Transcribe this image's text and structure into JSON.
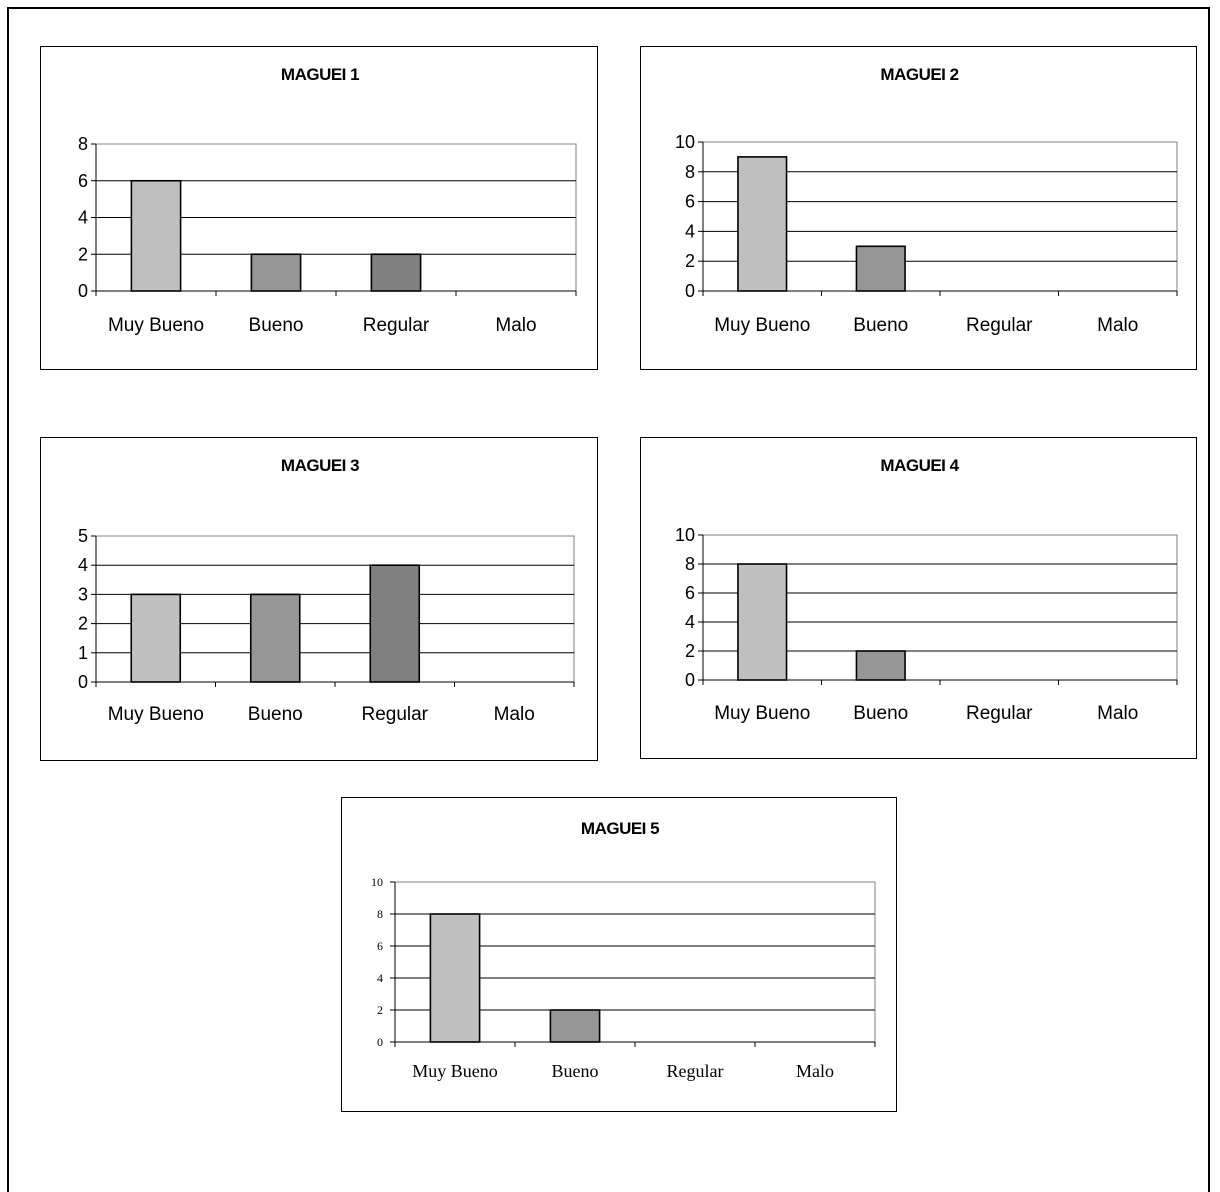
{
  "chart_data": [
    {
      "type": "bar",
      "title": "MAGUEI 1",
      "categories": [
        "Muy Bueno",
        "Bueno",
        "Regular",
        "Malo"
      ],
      "values": [
        6,
        2,
        2,
        0
      ],
      "ylim": [
        0,
        8
      ],
      "yticks": [
        0,
        2,
        4,
        6,
        8
      ],
      "grid": true,
      "legend": "none",
      "colors": [
        "#c0c0c0",
        "#969696",
        "#808080",
        "#c0c0c0"
      ]
    },
    {
      "type": "bar",
      "title": "MAGUEI 2",
      "categories": [
        "Muy Bueno",
        "Bueno",
        "Regular",
        "Malo"
      ],
      "values": [
        9,
        3,
        0,
        0
      ],
      "ylim": [
        0,
        10
      ],
      "yticks": [
        0,
        2,
        4,
        6,
        8,
        10
      ],
      "grid": true,
      "legend": "none",
      "colors": [
        "#c0c0c0",
        "#969696",
        "#808080",
        "#c0c0c0"
      ]
    },
    {
      "type": "bar",
      "title": "MAGUEI 3",
      "categories": [
        "Muy Bueno",
        "Bueno",
        "Regular",
        "Malo"
      ],
      "values": [
        3,
        3,
        4,
        0
      ],
      "ylim": [
        0,
        5
      ],
      "yticks": [
        0,
        1,
        2,
        3,
        4,
        5
      ],
      "grid": true,
      "legend": "none",
      "colors": [
        "#c0c0c0",
        "#969696",
        "#808080",
        "#c0c0c0"
      ]
    },
    {
      "type": "bar",
      "title": "MAGUEI 4",
      "categories": [
        "Muy Bueno",
        "Bueno",
        "Regular",
        "Malo"
      ],
      "values": [
        8,
        2,
        0,
        0
      ],
      "ylim": [
        0,
        10
      ],
      "yticks": [
        0,
        2,
        4,
        6,
        8,
        10
      ],
      "grid": true,
      "legend": "none",
      "colors": [
        "#c0c0c0",
        "#969696",
        "#808080",
        "#c0c0c0"
      ]
    },
    {
      "type": "bar",
      "title": "MAGUEI 5",
      "categories": [
        "Muy Bueno",
        "Bueno",
        "Regular",
        "Malo"
      ],
      "values": [
        8,
        2,
        0,
        0
      ],
      "ylim": [
        0,
        10
      ],
      "yticks": [
        0,
        2,
        4,
        6,
        8,
        10
      ],
      "grid": true,
      "legend": "none",
      "colors": [
        "#c0c0c0",
        "#969696",
        "#808080",
        "#c0c0c0"
      ]
    }
  ]
}
